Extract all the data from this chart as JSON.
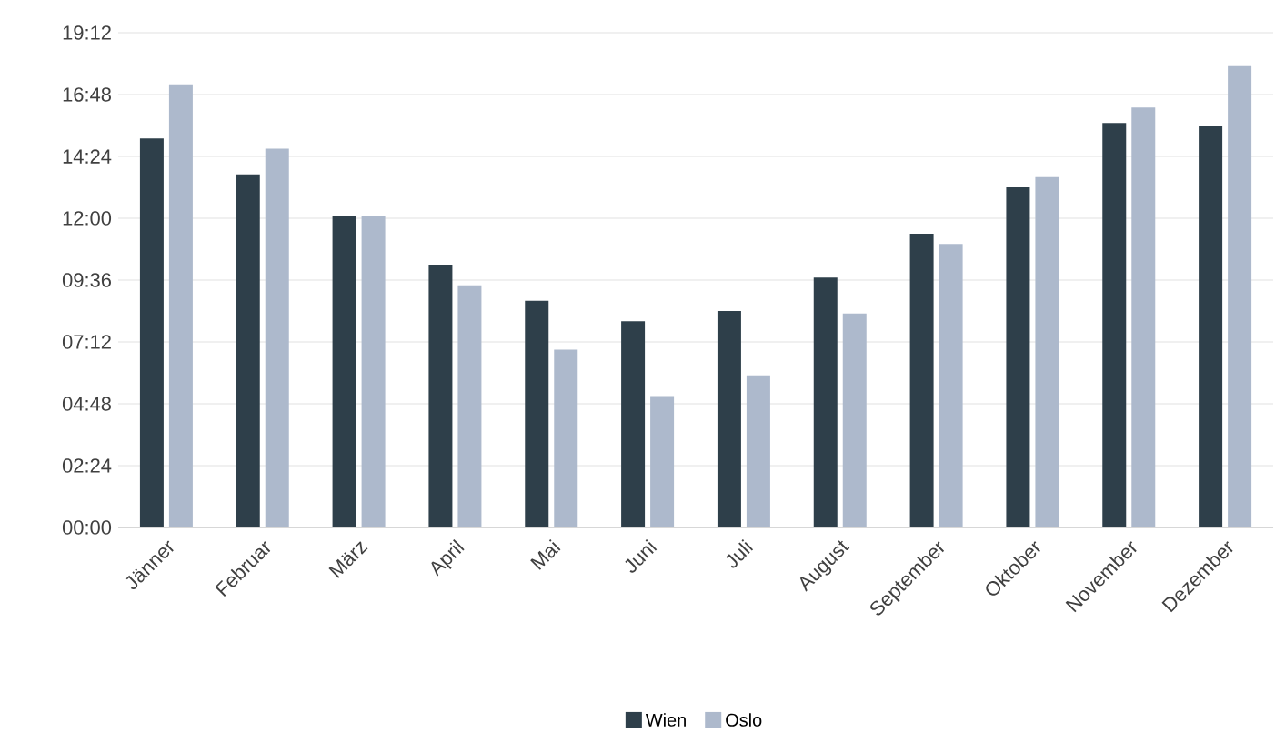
{
  "chart_data": {
    "type": "bar",
    "categories": [
      "Jänner",
      "Februar",
      "März",
      "April",
      "Mai",
      "Juni",
      "Juli",
      "August",
      "September",
      "Oktober",
      "November",
      "Dezember"
    ],
    "series": [
      {
        "name": "Wien",
        "color": "#2e3f4a",
        "values": [
          15.1,
          13.7,
          12.1,
          10.2,
          8.8,
          8.0,
          8.4,
          9.7,
          11.4,
          13.2,
          15.7,
          15.6
        ]
      },
      {
        "name": "Oslo",
        "color": "#adb9cc",
        "values": [
          17.2,
          14.7,
          12.1,
          9.4,
          6.9,
          5.1,
          5.9,
          8.3,
          11.0,
          13.6,
          16.3,
          17.9
        ]
      }
    ],
    "ylim": [
      0,
      19.2
    ],
    "yticks": [
      {
        "value": 0,
        "label": "00:00"
      },
      {
        "value": 2.4,
        "label": "02:24"
      },
      {
        "value": 4.8,
        "label": "04:48"
      },
      {
        "value": 7.2,
        "label": "07:12"
      },
      {
        "value": 9.6,
        "label": "09:36"
      },
      {
        "value": 12,
        "label": "12:00"
      },
      {
        "value": 14.4,
        "label": "14:24"
      },
      {
        "value": 16.8,
        "label": "16:48"
      },
      {
        "value": 19.2,
        "label": "19:12"
      }
    ],
    "grid": "y",
    "legend": "bottom"
  }
}
